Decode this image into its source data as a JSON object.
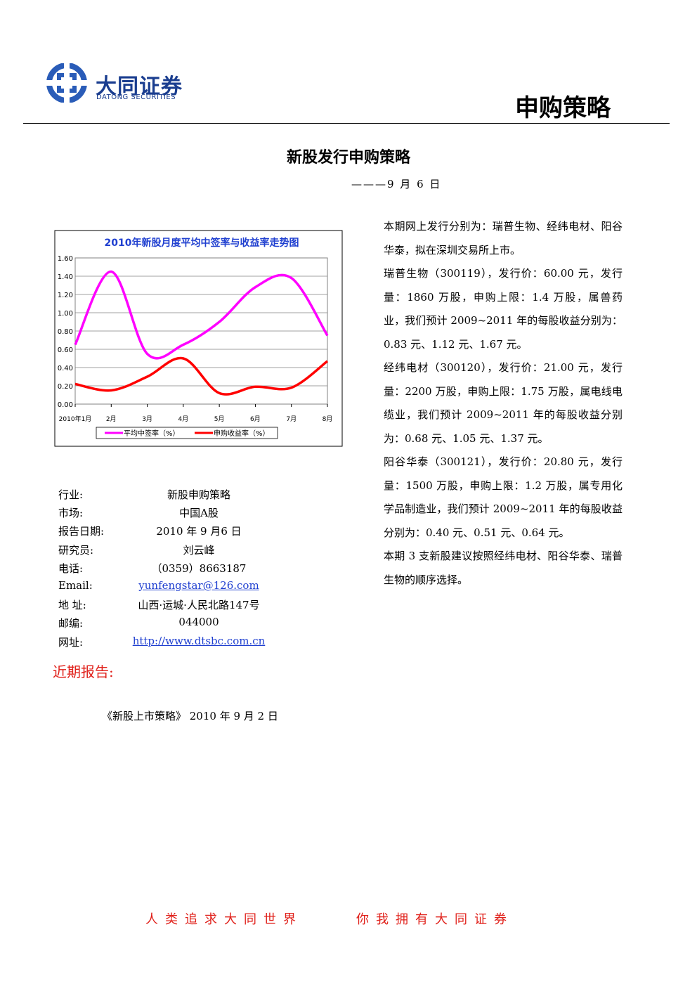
{
  "header": {
    "logo_cn": "大同证券",
    "logo_en": "DATONG SECURITIES",
    "section": "申购策略"
  },
  "title": "新股发行申购策略",
  "date": "———9 月 6 日",
  "chart_data": {
    "type": "line",
    "title": "2010年新股月度平均中签率与收益率走势图",
    "categories": [
      "2010年1月",
      "2月",
      "3月",
      "4月",
      "5月",
      "6月",
      "7月",
      "8月"
    ],
    "series": [
      {
        "name": "平均中签率（%）",
        "color": "#ff00ff",
        "values": [
          0.65,
          1.45,
          0.55,
          0.65,
          0.9,
          1.28,
          1.38,
          0.75
        ]
      },
      {
        "name": "申购收益率（%）",
        "color": "#ff0000",
        "values": [
          0.22,
          0.15,
          0.3,
          0.5,
          0.12,
          0.19,
          0.18,
          0.47
        ]
      }
    ],
    "ylim": [
      0,
      1.6
    ],
    "yticks": [
      {
        "value": 0,
        "label": "0.00"
      },
      {
        "value": 0.2,
        "label": "0.20"
      },
      {
        "value": 0.4,
        "label": "0.40"
      },
      {
        "value": 0.6,
        "label": "0.60"
      },
      {
        "value": 0.8,
        "label": "0.80"
      },
      {
        "value": 1,
        "label": "1.00"
      },
      {
        "value": 1.2,
        "label": "1.20"
      },
      {
        "value": 1.4,
        "label": "1.40"
      },
      {
        "value": 1.6,
        "label": "1.60"
      }
    ],
    "grid": true,
    "legend": "bottom"
  },
  "info": [
    [
      "行业:",
      "新股申购策略"
    ],
    [
      "市场:",
      "中国A股"
    ],
    [
      "报告日期:",
      "2010 年 9 月6 日"
    ],
    [
      "研究员:",
      "刘云峰"
    ],
    [
      "电话:",
      "（0359）8663187"
    ],
    [
      "Email:",
      "yunfengstar@126.com"
    ],
    [
      "地 址:",
      "山西·运城·人民北路147号"
    ],
    [
      "邮编:",
      "044000"
    ],
    [
      "网址:",
      "http://www.dtsbc.com.cn"
    ]
  ],
  "recent_reports": {
    "heading": "近期报告:",
    "items": [
      "《新股上市策略》 2010 年 9 月 2 日"
    ]
  },
  "paragraphs": [
    "本期网上发行分别为：瑞普生物、经纬电材、阳谷华泰，拟在深圳交易所上市。",
    "瑞普生物（300119），发行价：60.00 元，发行量：1860 万股，申购上限：1.4 万股，属兽药业，我们预计 2009~2011 年的每股收益分别为：0.83 元、1.12 元、1.67 元。",
    "经纬电材（300120），发行价：21.00 元，发行量：2200 万股，申购上限：1.75 万股，属电线电缆业，我们预计 2009~2011 年的每股收益分别为：0.68 元、1.05 元、1.37 元。",
    "阳谷华泰（300121），发行价：20.80 元，发行量：1500 万股，申购上限：1.2 万股，属专用化学品制造业，我们预计 2009~2011 年的每股收益分别为：0.40 元、0.51 元、0.64 元。",
    "本期 3 支新股建议按照经纬电材、阳谷华泰、瑞普生物的顺序选择。"
  ],
  "footer": [
    "人类追求大同世界",
    "你我拥有大同证券"
  ]
}
